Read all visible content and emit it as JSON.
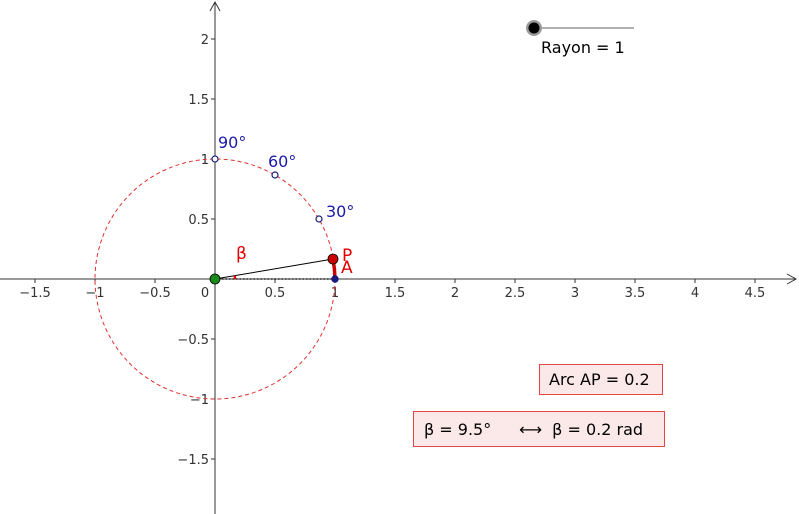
{
  "slider": {
    "label": "Rayon = 1",
    "value": 1
  },
  "axes": {
    "x_ticks": [
      "−1.5",
      "−1",
      "−0.5",
      "0",
      "0.5",
      "1",
      "1.5",
      "2",
      "2.5",
      "3",
      "3.5",
      "4",
      "4.5"
    ],
    "y_ticks": [
      "2",
      "1.5",
      "1",
      "0.5",
      "−0.5",
      "−1",
      "−1.5"
    ]
  },
  "markers": {
    "deg90": "90°",
    "deg60": "60°",
    "deg30": "30°"
  },
  "points": {
    "P": "P",
    "A": "A",
    "beta": "β"
  },
  "boxes": {
    "arc": "Arc AP = 0.2",
    "angle_deg": "β = 9.5°",
    "arrow": "⟷",
    "angle_rad": "β =  0.2 rad"
  },
  "colors": {
    "circle": "#e03030",
    "point_p": "#cc0000",
    "origin": "#1a8a1a",
    "point_a": "#1a1a80",
    "label_blue": "#1a1aa6",
    "box_border": "#e64545",
    "box_fill": "#fbe8e8"
  }
}
